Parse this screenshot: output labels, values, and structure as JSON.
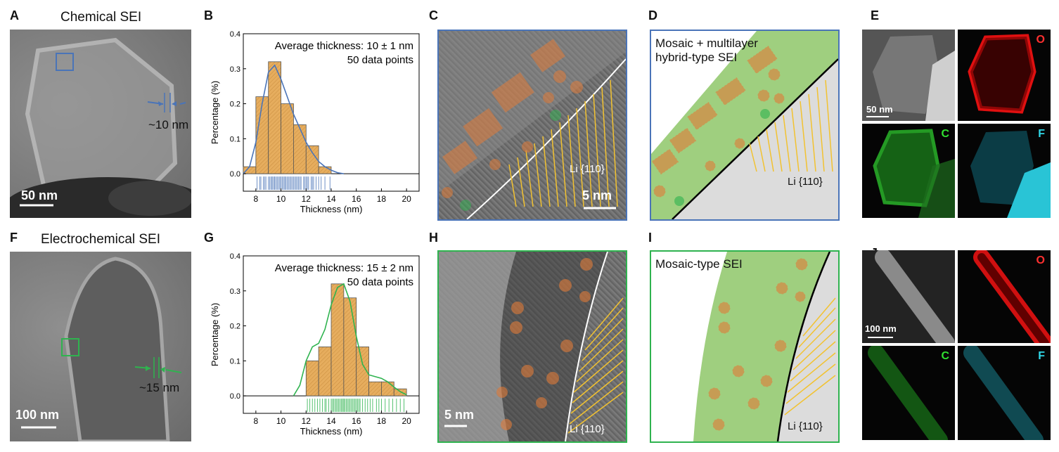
{
  "panels": {
    "A": {
      "letter": "A",
      "title": "Chemical SEI",
      "scale": "50 nm",
      "annotation": "~10 nm"
    },
    "B": {
      "letter": "B"
    },
    "C": {
      "letter": "C",
      "plane": "Li {110}",
      "scale": "5 nm"
    },
    "D": {
      "letter": "D",
      "label": "Mosaic + multilayer\nhybrid-type SEI",
      "label_line1": "Mosaic + multilayer",
      "label_line2": "hybrid-type SEI",
      "plane": "Li {110}"
    },
    "E": {
      "letter": "E",
      "scale": "50 nm",
      "elements": [
        "O",
        "C",
        "F"
      ]
    },
    "F": {
      "letter": "F",
      "title": "Electrochemical SEI",
      "scale": "100 nm",
      "annotation": "~15 nm"
    },
    "G": {
      "letter": "G"
    },
    "H": {
      "letter": "H",
      "plane": "Li {110}",
      "scale": "5 nm"
    },
    "I": {
      "letter": "I",
      "label": "Mosaic-type SEI",
      "plane": "Li {110}"
    },
    "J": {
      "letter": "J",
      "scale": "100 nm",
      "elements": [
        "O",
        "C",
        "F"
      ]
    }
  },
  "colors": {
    "blue": "#4a74b8",
    "green": "#2fb34f",
    "orange": "#e07b39",
    "yellow": "#f2c230",
    "sei_green": "#9fcf7f",
    "li_gray": "#dcdcdc",
    "hist_fill": "#e6ad5e"
  },
  "chart_data": [
    {
      "type": "bar",
      "panel": "B",
      "annotation_line1": "Average thickness: 10 ± 1 nm",
      "annotation_line2": "50 data points",
      "xlabel": "Thickness (nm)",
      "ylabel": "Percentage (%)",
      "xlim": [
        7,
        21
      ],
      "ylim": [
        -0.05,
        0.4
      ],
      "xticks": [
        8,
        10,
        12,
        14,
        16,
        18,
        20
      ],
      "yticks": [
        0.0,
        0.1,
        0.2,
        0.3,
        0.4
      ],
      "ytick_labels": [
        "0.0",
        "0.1",
        "0.2",
        "0.3",
        "0.4"
      ],
      "bin_edges": [
        7,
        8,
        9,
        10,
        11,
        12,
        13,
        14
      ],
      "values": [
        0.02,
        0.22,
        0.32,
        0.2,
        0.14,
        0.08,
        0.02
      ],
      "fit_curve": {
        "x": [
          7,
          7.5,
          8,
          8.5,
          9,
          9.5,
          10,
          10.5,
          11,
          11.5,
          12,
          12.5,
          13,
          13.5,
          14,
          14.5,
          15
        ],
        "y": [
          0.0,
          0.02,
          0.09,
          0.2,
          0.29,
          0.31,
          0.27,
          0.22,
          0.17,
          0.13,
          0.09,
          0.06,
          0.035,
          0.02,
          0.01,
          0.003,
          0.0
        ]
      },
      "rug": [
        8.1,
        8.3,
        8.4,
        8.6,
        8.7,
        8.8,
        9.0,
        9.1,
        9.2,
        9.3,
        9.3,
        9.4,
        9.5,
        9.5,
        9.6,
        9.7,
        9.8,
        9.9,
        10.0,
        10.0,
        10.1,
        10.2,
        10.3,
        10.3,
        10.4,
        10.5,
        10.6,
        10.7,
        10.8,
        10.9,
        11.0,
        11.1,
        11.2,
        11.3,
        11.4,
        11.5,
        11.6,
        11.8,
        11.9,
        12.0,
        12.1,
        12.2,
        12.4,
        12.5,
        12.6,
        12.8,
        13.0,
        13.2,
        13.5,
        13.9
      ],
      "color": "#4a74b8"
    },
    {
      "type": "bar",
      "panel": "G",
      "annotation_line1": "Average thickness: 15 ± 2 nm",
      "annotation_line2": "50 data points",
      "xlabel": "Thickness (nm)",
      "ylabel": "Percentage (%)",
      "xlim": [
        7,
        21
      ],
      "ylim": [
        -0.05,
        0.4
      ],
      "xticks": [
        8,
        10,
        12,
        14,
        16,
        18,
        20
      ],
      "yticks": [
        0.0,
        0.1,
        0.2,
        0.3,
        0.4
      ],
      "ytick_labels": [
        "0.0",
        "0.1",
        "0.2",
        "0.3",
        "0.4"
      ],
      "bin_edges": [
        12,
        13,
        14,
        15,
        16,
        17,
        18,
        19,
        20
      ],
      "values": [
        0.1,
        0.14,
        0.32,
        0.28,
        0.14,
        0.04,
        0.04,
        0.02
      ],
      "fit_curve": {
        "x": [
          11,
          11.5,
          12,
          12.5,
          13,
          13.5,
          14,
          14.5,
          15,
          15.5,
          16,
          16.5,
          17,
          17.5,
          18,
          18.5,
          19,
          19.5,
          20
        ],
        "y": [
          0.0,
          0.03,
          0.1,
          0.14,
          0.15,
          0.19,
          0.26,
          0.31,
          0.32,
          0.27,
          0.17,
          0.09,
          0.06,
          0.055,
          0.05,
          0.04,
          0.025,
          0.012,
          0.003
        ]
      },
      "rug": [
        12.1,
        12.3,
        12.5,
        12.7,
        12.9,
        13.1,
        13.3,
        13.5,
        13.6,
        13.8,
        14.0,
        14.1,
        14.2,
        14.3,
        14.4,
        14.5,
        14.6,
        14.7,
        14.8,
        14.9,
        14.9,
        15.0,
        15.1,
        15.2,
        15.3,
        15.4,
        15.5,
        15.6,
        15.7,
        15.8,
        15.9,
        16.0,
        16.1,
        16.3,
        16.5,
        16.7,
        16.9,
        17.1,
        17.3,
        17.6,
        17.8,
        18.0,
        18.3,
        18.6,
        18.9,
        19.2,
        19.5,
        19.8,
        16.2,
        15.0
      ],
      "color": "#2fb34f"
    }
  ]
}
